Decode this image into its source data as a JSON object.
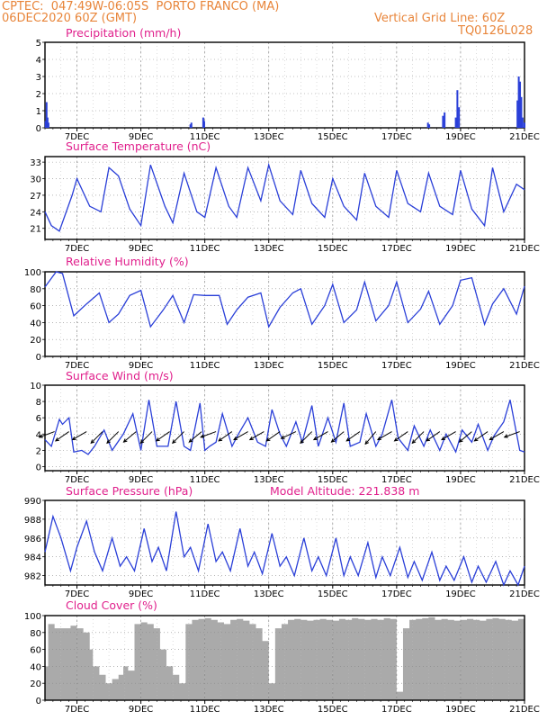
{
  "header": {
    "line1": "CPTEC:  047:49W-06:05S  PORTO FRANCO (MA)",
    "line2": "06DEC2020 60Z (GMT)",
    "right1": "Vertical Grid Line: 60Z",
    "right2": "TQ0126L028"
  },
  "colors": {
    "line": "#2a3fd8",
    "title": "#e0208c",
    "header": "#e8853a",
    "cloud": "#aaaaaa",
    "arrow": "#000000"
  },
  "chart_data": [
    {
      "type": "bar",
      "title": "Precipitation (mm/h)",
      "x_tick_labels": [
        "7DEC",
        "9DEC",
        "11DEC",
        "13DEC",
        "15DEC",
        "17DEC",
        "19DEC",
        "21DEC"
      ],
      "ylim": [
        0,
        5
      ],
      "y_ticks": [
        0,
        1,
        2,
        3,
        4,
        5
      ],
      "grid": true,
      "x": [
        6.02,
        6.05,
        6.08,
        6.11,
        10.55,
        10.58,
        10.95,
        10.98,
        17.98,
        18.02,
        18.45,
        18.5,
        18.85,
        18.9,
        18.95,
        20.78,
        20.82,
        20.86,
        20.9,
        20.94,
        21.0
      ],
      "values": [
        0.4,
        1.5,
        0.6,
        0.3,
        0.2,
        0.3,
        0.6,
        0.4,
        0.3,
        0.2,
        0.7,
        0.9,
        0.6,
        2.2,
        1.2,
        1.6,
        3.0,
        2.7,
        1.8,
        0.6,
        0.3
      ]
    },
    {
      "type": "line",
      "title": "Surface Temperature (nC)",
      "x_tick_labels": [
        "7DEC",
        "9DEC",
        "11DEC",
        "13DEC",
        "15DEC",
        "17DEC",
        "19DEC",
        "21DEC"
      ],
      "ylim": [
        19,
        34
      ],
      "y_ticks": [
        21,
        24,
        27,
        30,
        33
      ],
      "grid": true,
      "x": [
        6.0,
        6.2,
        6.45,
        6.85,
        7.0,
        7.4,
        7.75,
        8.0,
        8.3,
        8.65,
        9.0,
        9.3,
        9.75,
        10.0,
        10.35,
        10.75,
        11.0,
        11.35,
        11.75,
        12.0,
        12.35,
        12.75,
        13.0,
        13.35,
        13.75,
        14.0,
        14.35,
        14.75,
        15.0,
        15.35,
        15.75,
        16.0,
        16.35,
        16.75,
        17.0,
        17.35,
        17.75,
        18.0,
        18.35,
        18.75,
        19.0,
        19.35,
        19.75,
        20.0,
        20.35,
        20.75,
        21.0
      ],
      "values": [
        24.0,
        21.5,
        20.5,
        27.0,
        30.0,
        25.0,
        24.0,
        32.0,
        30.5,
        24.5,
        21.5,
        32.5,
        25.0,
        22.0,
        31.0,
        24.0,
        23.0,
        32.0,
        25.0,
        23.0,
        32.0,
        26.0,
        32.5,
        26.0,
        23.5,
        31.5,
        25.5,
        23.0,
        30.0,
        25.0,
        22.5,
        31.0,
        25.0,
        23.0,
        31.5,
        25.5,
        24.0,
        31.0,
        25.0,
        23.5,
        31.5,
        24.5,
        21.5,
        32.0,
        24.0,
        29.0,
        28.0
      ]
    },
    {
      "type": "line",
      "title": "Relative Humidity (%)",
      "x_tick_labels": [
        "7DEC",
        "9DEC",
        "11DEC",
        "13DEC",
        "15DEC",
        "17DEC",
        "19DEC",
        "21DEC"
      ],
      "ylim": [
        0,
        100
      ],
      "y_ticks": [
        0,
        20,
        40,
        60,
        80,
        100
      ],
      "grid": true,
      "x": [
        6.0,
        6.35,
        6.55,
        6.9,
        7.3,
        7.7,
        8.0,
        8.3,
        8.65,
        9.0,
        9.3,
        9.7,
        10.0,
        10.35,
        10.65,
        11.0,
        11.45,
        11.7,
        12.0,
        12.35,
        12.75,
        13.0,
        13.35,
        13.75,
        14.0,
        14.35,
        14.75,
        15.0,
        15.35,
        15.75,
        16.0,
        16.35,
        16.75,
        17.0,
        17.35,
        17.75,
        18.0,
        18.35,
        18.75,
        19.0,
        19.35,
        19.75,
        20.0,
        20.35,
        20.75,
        21.0
      ],
      "values": [
        82.0,
        100.0,
        98.0,
        48.0,
        62.0,
        75.0,
        40.0,
        50.0,
        72.0,
        78.0,
        35.0,
        55.0,
        72.0,
        40.0,
        73.0,
        72.0,
        72.0,
        38.0,
        55.0,
        70.0,
        75.0,
        35.0,
        58.0,
        75.0,
        80.0,
        38.0,
        60.0,
        85.0,
        40.0,
        55.0,
        88.0,
        42.0,
        60.0,
        88.0,
        40.0,
        56.0,
        77.0,
        38.0,
        60.0,
        90.0,
        93.0,
        38.0,
        62.0,
        80.0,
        50.0,
        83.0
      ]
    },
    {
      "type": "line",
      "title": "Surface Wind (m/s)",
      "x_tick_labels": [
        "7DEC",
        "9DEC",
        "11DEC",
        "13DEC",
        "15DEC",
        "17DEC",
        "19DEC",
        "21DEC"
      ],
      "ylim": [
        -0.5,
        10
      ],
      "y_ticks": [
        0,
        2,
        4,
        6,
        8,
        10
      ],
      "grid": true,
      "x": [
        6.0,
        6.2,
        6.45,
        6.55,
        6.75,
        6.9,
        7.15,
        7.35,
        7.55,
        7.85,
        8.1,
        8.45,
        8.75,
        9.0,
        9.25,
        9.5,
        9.85,
        10.1,
        10.35,
        10.55,
        10.85,
        11.0,
        11.15,
        11.35,
        11.55,
        11.85,
        12.05,
        12.35,
        12.65,
        12.9,
        13.1,
        13.35,
        13.55,
        13.85,
        14.05,
        14.35,
        14.55,
        14.85,
        15.1,
        15.35,
        15.55,
        15.85,
        16.05,
        16.35,
        16.55,
        16.85,
        17.05,
        17.35,
        17.55,
        17.85,
        18.05,
        18.35,
        18.55,
        18.85,
        19.05,
        19.35,
        19.55,
        19.85,
        20.05,
        20.35,
        20.55,
        20.85,
        21.0
      ],
      "values": [
        3.3,
        2.5,
        5.8,
        5.2,
        6.0,
        1.8,
        2.0,
        1.5,
        2.5,
        4.5,
        2.0,
        4.0,
        6.5,
        2.0,
        8.2,
        2.5,
        2.5,
        8.0,
        2.5,
        2.0,
        7.8,
        2.0,
        2.5,
        3.0,
        6.5,
        2.5,
        4.0,
        6.0,
        3.0,
        2.5,
        7.0,
        4.0,
        2.5,
        5.5,
        3.0,
        7.5,
        2.5,
        6.0,
        3.0,
        7.8,
        2.5,
        3.0,
        6.5,
        2.5,
        4.0,
        8.2,
        3.5,
        2.0,
        5.0,
        2.5,
        4.5,
        2.0,
        4.0,
        1.8,
        4.5,
        3.0,
        5.2,
        2.0,
        3.8,
        5.5,
        8.2,
        2.0,
        1.8
      ]
    },
    {
      "type": "line",
      "title": "Surface Pressure (hPa)",
      "annotation": "Model Altitude: 221.838 m",
      "x_tick_labels": [
        "7DEC",
        "9DEC",
        "11DEC",
        "13DEC",
        "15DEC",
        "17DEC",
        "19DEC",
        "21DEC"
      ],
      "ylim": [
        981.0,
        990.0
      ],
      "y_ticks": [
        982,
        984,
        986,
        988,
        990
      ],
      "grid": true,
      "x": [
        6.0,
        6.25,
        6.5,
        6.8,
        7.0,
        7.3,
        7.55,
        7.8,
        8.1,
        8.35,
        8.55,
        8.8,
        9.1,
        9.35,
        9.55,
        9.8,
        10.1,
        10.35,
        10.55,
        10.8,
        11.1,
        11.35,
        11.55,
        11.8,
        12.1,
        12.35,
        12.55,
        12.8,
        13.1,
        13.35,
        13.55,
        13.8,
        14.1,
        14.35,
        14.55,
        14.8,
        15.1,
        15.35,
        15.55,
        15.8,
        16.1,
        16.35,
        16.55,
        16.8,
        17.1,
        17.35,
        17.55,
        17.8,
        18.1,
        18.35,
        18.55,
        18.8,
        19.1,
        19.35,
        19.55,
        19.8,
        20.1,
        20.35,
        20.55,
        20.8,
        21.0
      ],
      "values": [
        984.5,
        988.3,
        986.0,
        982.5,
        985.0,
        987.8,
        984.5,
        982.5,
        986.0,
        983.0,
        984.0,
        982.5,
        987.0,
        983.5,
        985.0,
        982.5,
        988.8,
        984.0,
        985.0,
        982.5,
        987.5,
        983.5,
        984.5,
        982.5,
        987.0,
        983.0,
        984.5,
        982.2,
        986.5,
        983.0,
        984.0,
        982.0,
        986.0,
        982.5,
        984.0,
        982.0,
        986.0,
        982.0,
        984.0,
        982.0,
        985.5,
        981.8,
        984.0,
        982.0,
        985.0,
        981.8,
        983.5,
        981.5,
        984.5,
        981.5,
        983.0,
        981.5,
        984.0,
        981.3,
        983.0,
        981.3,
        983.5,
        981.0,
        982.5,
        981.0,
        983.0
      ]
    },
    {
      "type": "area",
      "title": "Cloud Cover (%)",
      "x_tick_labels": [
        "7DEC",
        "9DEC",
        "11DEC",
        "13DEC",
        "15DEC",
        "17DEC",
        "19DEC",
        "21DEC"
      ],
      "ylim": [
        0,
        100
      ],
      "y_ticks": [
        0,
        20,
        40,
        60,
        80,
        100
      ],
      "grid": true,
      "x": [
        6.0,
        6.1,
        6.3,
        6.5,
        6.8,
        7.0,
        7.2,
        7.4,
        7.5,
        7.7,
        7.9,
        8.1,
        8.3,
        8.45,
        8.6,
        8.8,
        9.0,
        9.2,
        9.4,
        9.6,
        9.8,
        10.0,
        10.2,
        10.4,
        10.6,
        10.8,
        11.0,
        11.2,
        11.4,
        11.6,
        11.8,
        12.0,
        12.2,
        12.4,
        12.6,
        12.8,
        13.0,
        13.2,
        13.4,
        13.6,
        13.8,
        14.0,
        14.2,
        14.4,
        14.6,
        14.8,
        15.0,
        15.2,
        15.4,
        15.6,
        15.8,
        16.0,
        16.2,
        16.4,
        16.6,
        16.8,
        17.0,
        17.2,
        17.4,
        17.6,
        17.8,
        18.0,
        18.2,
        18.4,
        18.6,
        18.8,
        19.0,
        19.2,
        19.4,
        19.6,
        19.8,
        20.0,
        20.2,
        20.4,
        20.6,
        20.8,
        21.0
      ],
      "values": [
        40,
        90,
        85,
        85,
        88,
        85,
        80,
        60,
        40,
        30,
        20,
        25,
        30,
        40,
        35,
        90,
        92,
        90,
        85,
        60,
        40,
        30,
        20,
        90,
        95,
        96,
        97,
        95,
        92,
        90,
        95,
        96,
        94,
        90,
        85,
        70,
        20,
        85,
        90,
        95,
        96,
        95,
        94,
        95,
        96,
        95,
        94,
        96,
        95,
        97,
        96,
        95,
        96,
        95,
        97,
        96,
        10,
        85,
        95,
        96,
        97,
        98,
        95,
        96,
        95,
        94,
        95,
        96,
        95,
        94,
        96,
        97,
        96,
        95,
        94,
        96,
        97
      ]
    }
  ]
}
